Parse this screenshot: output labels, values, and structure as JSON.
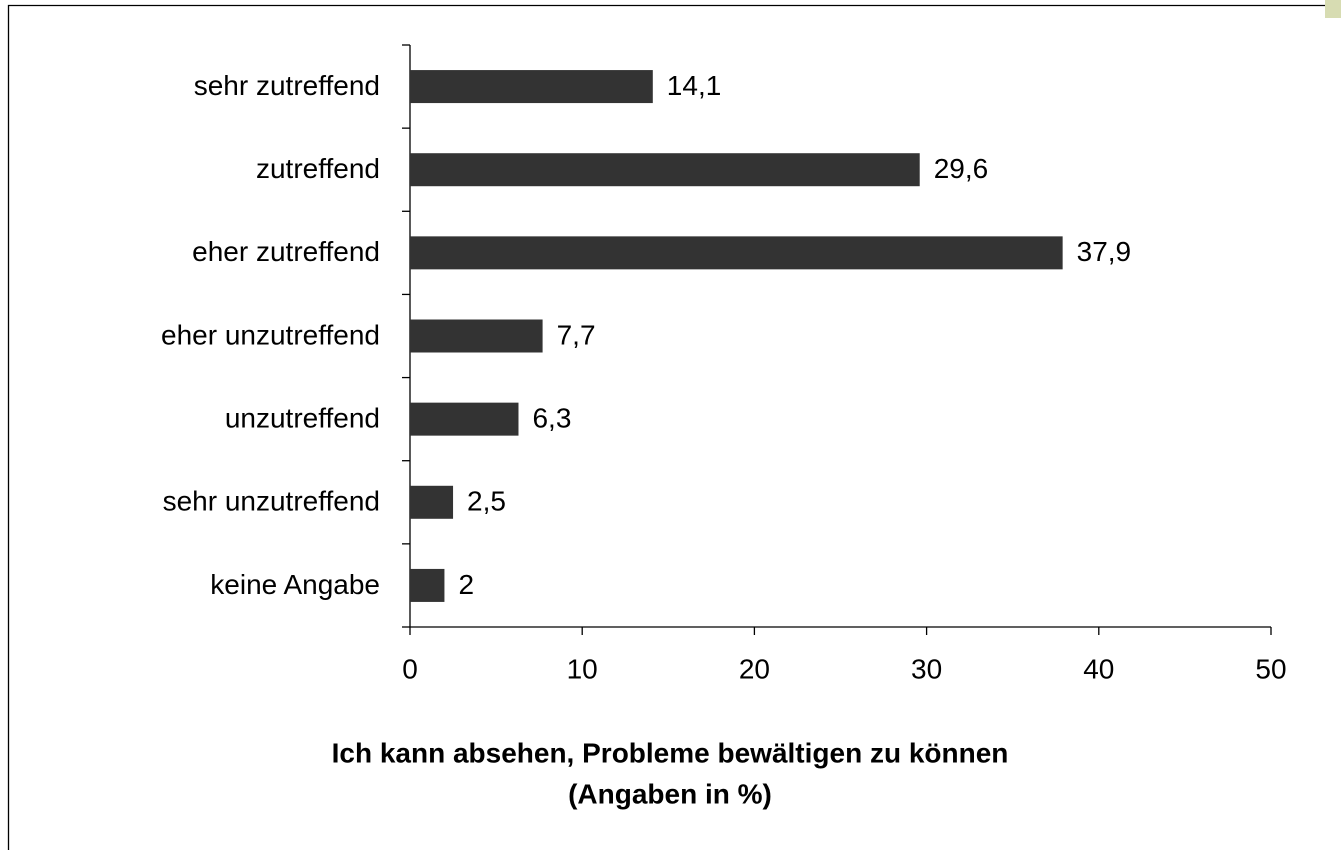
{
  "chart_data": {
    "type": "bar",
    "orientation": "horizontal",
    "title": "Ich kann absehen, Probleme bewältigen zu können",
    "subtitle": "(Angaben in %)",
    "categories": [
      "sehr zutreffend",
      "zutreffend",
      "eher zutreffend",
      "eher unzutreffend",
      "unzutreffend",
      "sehr unzutreffend",
      "keine Angabe"
    ],
    "values": [
      14.1,
      29.6,
      37.9,
      7.7,
      6.3,
      2.5,
      2
    ],
    "value_labels": [
      "14,1",
      "29,6",
      "37,9",
      "7,7",
      "6,3",
      "2,5",
      "2"
    ],
    "color": "#333333",
    "xlim": [
      0,
      50
    ],
    "xticks": [
      0,
      10,
      20,
      30,
      40,
      50
    ],
    "grid": false
  }
}
